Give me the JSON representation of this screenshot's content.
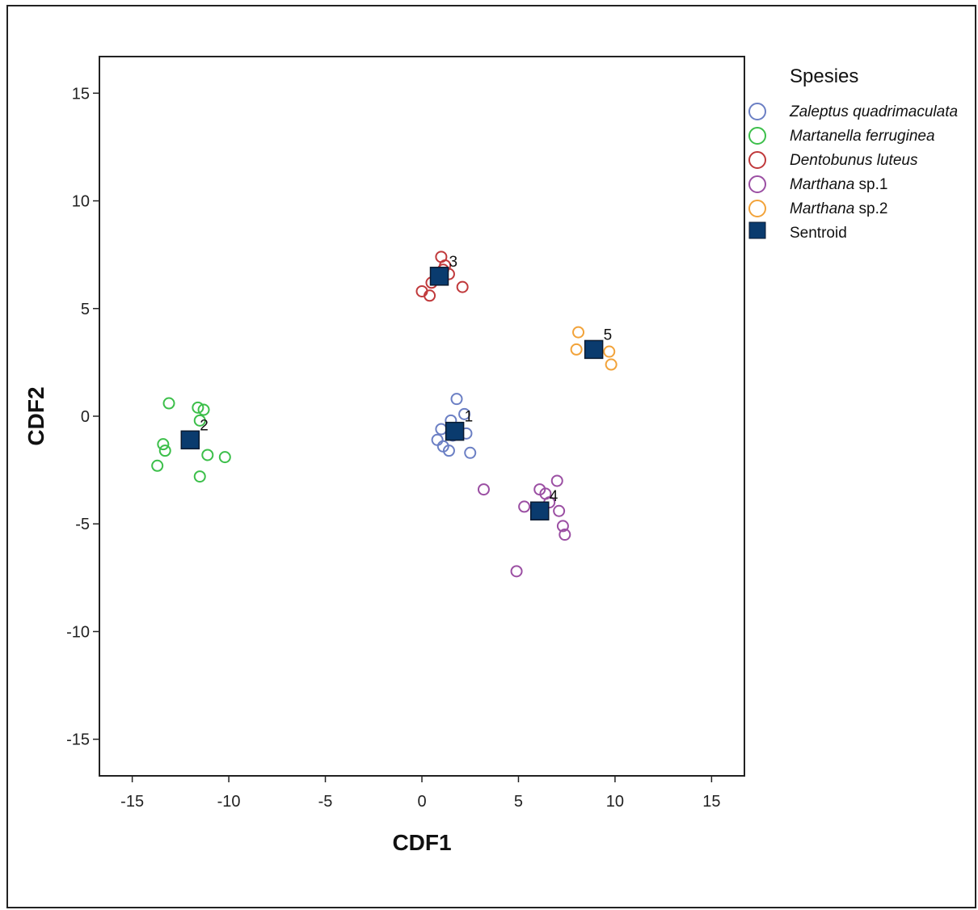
{
  "chart_data": {
    "type": "scatter",
    "xlabel": "CDF1",
    "ylabel": "CDF2",
    "xlim": [
      -16.7,
      16.7
    ],
    "ylim": [
      -16.7,
      16.7
    ],
    "xticks": [
      -15,
      -10,
      -5,
      0,
      5,
      10,
      15
    ],
    "yticks": [
      15,
      10,
      5,
      0,
      -5,
      -10,
      -15
    ],
    "xtick_labels": [
      "-15",
      "-10",
      "-5",
      "0",
      "5",
      "10",
      "15"
    ],
    "ytick_labels": [
      "15",
      "10",
      "5",
      "0",
      "-5",
      "-10",
      "-15"
    ],
    "grid": false,
    "legend": {
      "title": "Spesies",
      "placement": "top-right",
      "entries": [
        {
          "italic": "Zaleptus quadrimaculata",
          "rest": ""
        },
        {
          "italic": "Martanella ferruginea",
          "rest": ""
        },
        {
          "italic": "Dentobunus luteus",
          "rest": ""
        },
        {
          "italic": "Marthana",
          "rest": " sp.1"
        },
        {
          "italic": "Marthana",
          "rest": " sp.2"
        },
        {
          "italic": "",
          "rest": "Sentroid"
        }
      ]
    },
    "series": [
      {
        "color": "#6b7fc4",
        "points": [
          [
            1.8,
            0.8
          ],
          [
            2.2,
            0.1
          ],
          [
            1.5,
            -0.2
          ],
          [
            1.0,
            -0.6
          ],
          [
            2.3,
            -0.8
          ],
          [
            0.8,
            -1.1
          ],
          [
            1.1,
            -1.4
          ],
          [
            1.4,
            -1.6
          ],
          [
            2.5,
            -1.7
          ],
          [
            1.6,
            -0.9
          ]
        ]
      },
      {
        "color": "#3cbf4a",
        "points": [
          [
            -13.1,
            0.6
          ],
          [
            -11.6,
            0.4
          ],
          [
            -11.3,
            0.3
          ],
          [
            -11.5,
            -0.2
          ],
          [
            -13.4,
            -1.3
          ],
          [
            -13.3,
            -1.6
          ],
          [
            -11.1,
            -1.8
          ],
          [
            -10.2,
            -1.9
          ],
          [
            -13.7,
            -2.3
          ],
          [
            -11.5,
            -2.8
          ]
        ]
      },
      {
        "color": "#c0393b",
        "points": [
          [
            1.0,
            7.4
          ],
          [
            1.2,
            7.0
          ],
          [
            1.4,
            6.6
          ],
          [
            0.8,
            6.5
          ],
          [
            0.5,
            6.2
          ],
          [
            2.1,
            6.0
          ],
          [
            0.0,
            5.8
          ],
          [
            0.4,
            5.6
          ],
          [
            1.1,
            6.8
          ]
        ]
      },
      {
        "color": "#9b4fa3",
        "points": [
          [
            3.2,
            -3.4
          ],
          [
            7.0,
            -3.0
          ],
          [
            6.1,
            -3.4
          ],
          [
            6.4,
            -3.6
          ],
          [
            5.3,
            -4.2
          ],
          [
            7.1,
            -4.4
          ],
          [
            7.3,
            -5.1
          ],
          [
            7.4,
            -5.5
          ],
          [
            4.9,
            -7.2
          ],
          [
            6.6,
            -4.0
          ]
        ]
      },
      {
        "color": "#f2a33a",
        "points": [
          [
            8.1,
            3.9
          ],
          [
            8.0,
            3.1
          ],
          [
            9.7,
            3.0
          ],
          [
            9.8,
            2.4
          ]
        ]
      }
    ],
    "centroids": {
      "color": "#0a3b6e",
      "labels": [
        "1",
        "2",
        "3",
        "4",
        "5"
      ],
      "points": [
        [
          1.7,
          -0.7
        ],
        [
          -12.0,
          -1.1
        ],
        [
          0.9,
          6.5
        ],
        [
          6.1,
          -4.4
        ],
        [
          8.9,
          3.1
        ]
      ]
    }
  }
}
